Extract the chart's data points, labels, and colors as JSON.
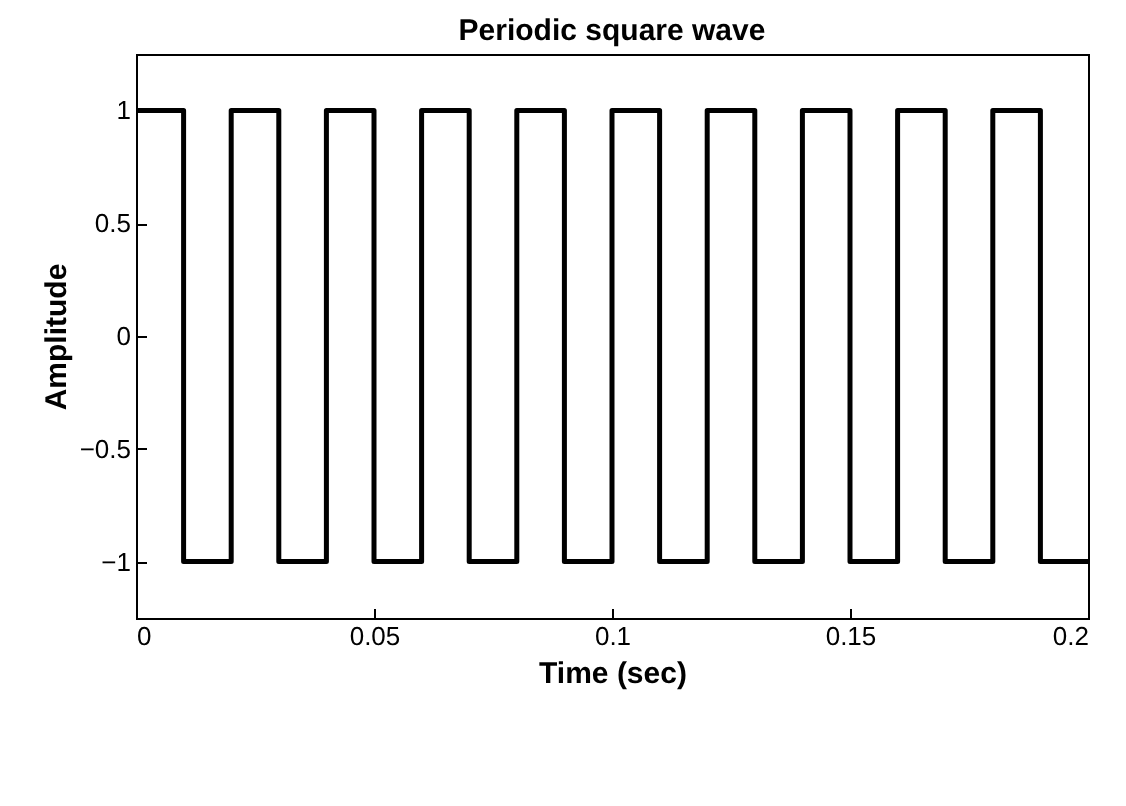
{
  "chart_data": {
    "type": "step",
    "title": "Periodic square wave",
    "xlabel": "Time (sec)",
    "ylabel": "Amplitude",
    "x": [
      0,
      0.01,
      0.02,
      0.03,
      0.04,
      0.05,
      0.06,
      0.07,
      0.08,
      0.09,
      0.1,
      0.11,
      0.12,
      0.13,
      0.14,
      0.15,
      0.16,
      0.17,
      0.18,
      0.19,
      0.2
    ],
    "series": [
      {
        "color": "#000000",
        "values": [
          1,
          -1,
          1,
          -1,
          1,
          -1,
          1,
          -1,
          1,
          -1,
          1,
          -1,
          1,
          -1,
          1,
          -1,
          1,
          -1,
          1,
          -1,
          -1
        ]
      }
    ],
    "xlim": [
      0,
      0.2
    ],
    "xticks": [
      0,
      0.05,
      0.1,
      0.15,
      0.2
    ],
    "ylim": [
      -1.25,
      1.25
    ],
    "yticks": [
      -1,
      -0.5,
      0,
      0.5,
      1
    ],
    "grid": false,
    "legend": false,
    "marker": "none",
    "line_style": "solid"
  }
}
